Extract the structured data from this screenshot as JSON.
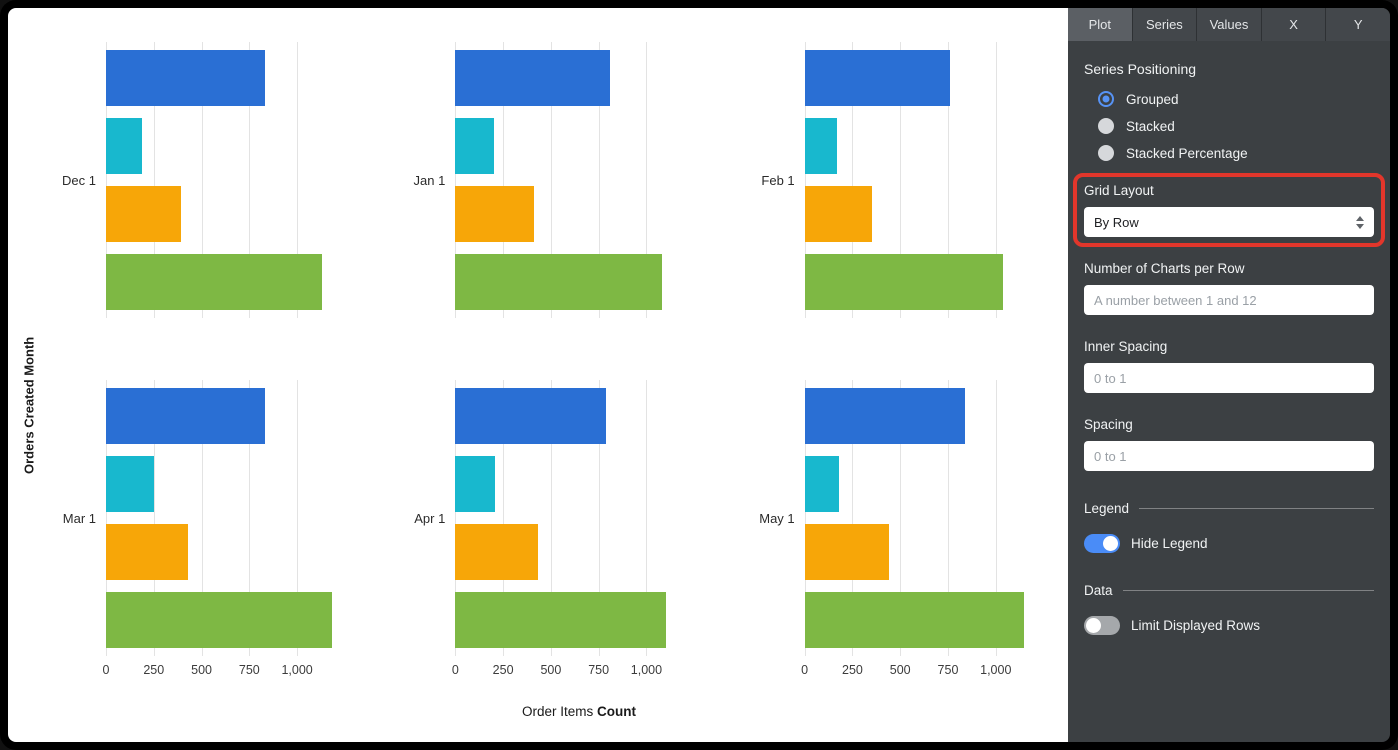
{
  "panel": {
    "tabs": [
      {
        "label": "Plot",
        "active": true
      },
      {
        "label": "Series",
        "active": false
      },
      {
        "label": "Values",
        "active": false
      },
      {
        "label": "X",
        "active": false
      },
      {
        "label": "Y",
        "active": false
      }
    ],
    "series_positioning": {
      "label": "Series Positioning",
      "options": [
        {
          "label": "Grouped",
          "selected": true
        },
        {
          "label": "Stacked",
          "selected": false
        },
        {
          "label": "Stacked Percentage",
          "selected": false
        }
      ]
    },
    "grid_layout": {
      "label": "Grid Layout",
      "value": "By Row"
    },
    "charts_per_row": {
      "label": "Number of Charts per Row",
      "placeholder": "A number between 1 and 12"
    },
    "inner_spacing": {
      "label": "Inner Spacing",
      "placeholder": "0 to 1"
    },
    "spacing": {
      "label": "Spacing",
      "placeholder": "0 to 1"
    },
    "legend_section": {
      "label": "Legend",
      "toggle_label": "Hide Legend",
      "toggle_on": true
    },
    "data_section": {
      "label": "Data",
      "toggle_label": "Limit Displayed Rows",
      "toggle_on": false
    },
    "annotation_color": "#e2362b",
    "panel_bg": "#3c4043"
  },
  "chart_data": {
    "type": "bar",
    "orientation": "horizontal",
    "layout": "small-multiples-grid",
    "grid": {
      "rows": 2,
      "cols": 3
    },
    "title": "",
    "xlabel": "Order Items Count",
    "ylabel": "Orders Created Month",
    "x_ticks": [
      0,
      250,
      500,
      750,
      1000
    ],
    "xlim": [
      0,
      1200
    ],
    "grid_on": true,
    "legend_position": "hidden",
    "series_colors": [
      "#2a6fd4",
      "#18b8ce",
      "#f7a608",
      "#7eb844"
    ],
    "charts": [
      {
        "label": "Dec 1",
        "values": [
          830,
          190,
          390,
          1130
        ]
      },
      {
        "label": "Jan 1",
        "values": [
          810,
          200,
          410,
          1080
        ]
      },
      {
        "label": "Feb 1",
        "values": [
          760,
          170,
          350,
          1040
        ]
      },
      {
        "label": "Mar 1",
        "values": [
          830,
          250,
          430,
          1180
        ]
      },
      {
        "label": "Apr 1",
        "values": [
          790,
          210,
          430,
          1100
        ]
      },
      {
        "label": "May 1",
        "values": [
          840,
          180,
          440,
          1150
        ]
      }
    ]
  }
}
